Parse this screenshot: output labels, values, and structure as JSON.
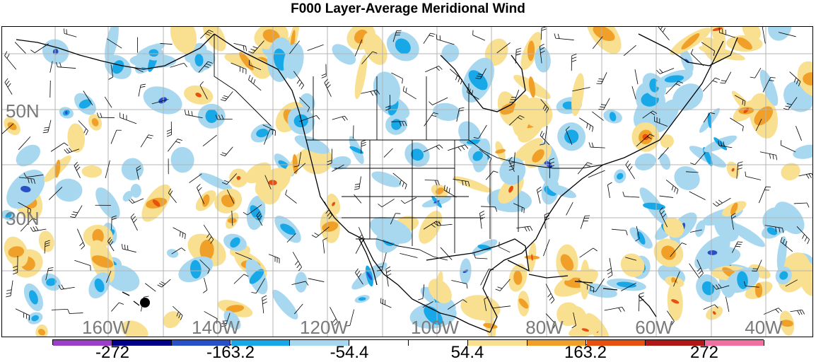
{
  "title": "F000 Layer-Average Meridional Wind",
  "lat_labels": [
    "50N",
    "30N"
  ],
  "lon_labels": [
    "160W",
    "140W",
    "120W",
    "100W",
    "80W",
    "60W",
    "40W"
  ],
  "colorbar": {
    "colors": [
      "#9a3fc8",
      "#00008b",
      "#2a50c8",
      "#18a8e8",
      "#a8d8f0",
      "#ffffff",
      "#ffffff",
      "#f8e090",
      "#f0a028",
      "#e85010",
      "#b01818",
      "#f070a0"
    ],
    "tick_labels": [
      "-272",
      "-163.2",
      "-54.4",
      "54.4",
      "163.2",
      "272"
    ]
  },
  "palette": {
    "land_outline": "#000000",
    "grid": "#b4b4b4",
    "negative_light": "#a8d8f0",
    "negative_mid": "#18a8e8",
    "negative_strong": "#2a50c8",
    "positive_light": "#f8e090",
    "positive_mid": "#f0a028",
    "positive_strong": "#e85010"
  }
}
